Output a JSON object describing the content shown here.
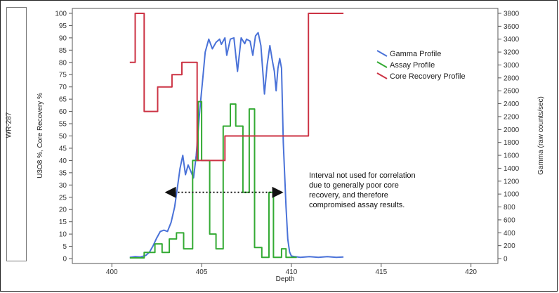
{
  "side_label": "WR-287",
  "chart_data": {
    "type": "line",
    "title": "",
    "xlabel": "Depth",
    "ylabel_left": "U3O8 %, Core Recovery %",
    "ylabel_right": "Gamma (raw counts/sec)",
    "xlim": [
      397.8,
      421.5
    ],
    "ylim_left": [
      -2,
      102
    ],
    "ylim_right": [
      -76,
      3876
    ],
    "x_ticks": [
      400,
      405,
      410,
      415,
      420
    ],
    "y_ticks_left": [
      0,
      5,
      10,
      15,
      20,
      25,
      30,
      35,
      40,
      45,
      50,
      55,
      60,
      65,
      70,
      75,
      80,
      85,
      90,
      95,
      100
    ],
    "y_ticks_right": [
      0,
      200,
      400,
      600,
      800,
      1000,
      1200,
      1400,
      1600,
      1800,
      2000,
      2200,
      2400,
      2600,
      2800,
      3000,
      3200,
      3400,
      3600,
      3800
    ],
    "grid": false,
    "legend_position": "right",
    "legend": [
      "Gamma Profile",
      "Assay Profile",
      "Core Recovery Profile"
    ],
    "series": [
      {
        "name": "Gamma Profile",
        "axis": "right",
        "color": "#4a72d8",
        "x": [
          401.0,
          401.3,
          401.6,
          401.9,
          402.1,
          402.3,
          402.5,
          402.7,
          402.9,
          403.1,
          403.3,
          403.5,
          403.65,
          403.8,
          403.95,
          404.1,
          404.25,
          404.4,
          404.55,
          404.7,
          404.9,
          405.1,
          405.2,
          405.4,
          405.6,
          405.8,
          406.0,
          406.1,
          406.3,
          406.4,
          406.6,
          406.8,
          407.0,
          407.2,
          407.4,
          407.5,
          407.7,
          407.85,
          408.0,
          408.15,
          408.3,
          408.5,
          408.65,
          408.8,
          408.95,
          409.05,
          409.15,
          409.25,
          409.35,
          409.45,
          409.55,
          409.7,
          409.8,
          409.9,
          410.0,
          410.2,
          410.5,
          411.0,
          411.5,
          412.0,
          412.5,
          412.9
        ],
        "y": [
          20,
          30,
          25,
          50,
          100,
          200,
          320,
          420,
          440,
          420,
          560,
          800,
          1100,
          1400,
          1600,
          1300,
          1450,
          1350,
          1250,
          1600,
          2300,
          2900,
          3200,
          3400,
          3250,
          3350,
          3400,
          3320,
          3420,
          3150,
          3400,
          3420,
          2900,
          3420,
          3330,
          3400,
          3370,
          3150,
          3450,
          3500,
          3300,
          2550,
          3000,
          3300,
          3050,
          2900,
          2600,
          2950,
          3100,
          2950,
          1800,
          800,
          300,
          100,
          40,
          30,
          20,
          30,
          20,
          30,
          20,
          25
        ]
      },
      {
        "name": "Assay Profile",
        "axis": "left",
        "color": "#33aa33",
        "x": [
          401.0,
          401.8,
          401.8,
          402.4,
          402.4,
          402.8,
          402.8,
          403.2,
          403.2,
          403.6,
          403.6,
          404.0,
          404.0,
          404.5,
          404.5,
          404.8,
          404.8,
          405.0,
          405.0,
          405.45,
          405.45,
          405.8,
          405.8,
          406.2,
          406.2,
          406.6,
          406.6,
          406.9,
          406.9,
          407.3,
          407.3,
          407.65,
          407.65,
          407.95,
          407.95,
          408.35,
          408.35,
          408.75,
          408.75,
          409.0,
          409.0,
          409.45,
          409.45,
          409.7,
          409.7,
          410.3
        ],
        "y": [
          0.3,
          0.3,
          2.5,
          2.5,
          6,
          6,
          2.5,
          2.5,
          8,
          8,
          10.5,
          10.5,
          4,
          4,
          40,
          40,
          64,
          64,
          40,
          40,
          10,
          10,
          4,
          4,
          54,
          54,
          63,
          63,
          54,
          54,
          27,
          27,
          61,
          61,
          4.5,
          4.5,
          0.5,
          0.5,
          27,
          27,
          0.5,
          0.5,
          4,
          4,
          0.5,
          0.5
        ]
      },
      {
        "name": "Core Recovery Profile",
        "axis": "left",
        "color": "#cc3344",
        "x": [
          401.0,
          401.3,
          401.3,
          401.8,
          401.8,
          402.55,
          402.55,
          403.35,
          403.35,
          403.9,
          403.9,
          404.75,
          404.75,
          406.3,
          406.3,
          409.0,
          409.0,
          410.95,
          410.95,
          412.9
        ],
        "y": [
          80,
          80,
          100,
          100,
          60,
          60,
          70,
          70,
          75,
          75,
          80,
          80,
          40,
          40,
          50,
          50,
          50,
          50,
          100,
          100
        ]
      }
    ],
    "annotations": [
      {
        "text_lines": [
          "Interval not used for correlation",
          "due to generally poor core",
          "recovery, and therefore",
          "compromised assay results."
        ]
      }
    ],
    "arrow_span": {
      "x": [
        403.1,
        409.4
      ],
      "y": 27
    }
  }
}
